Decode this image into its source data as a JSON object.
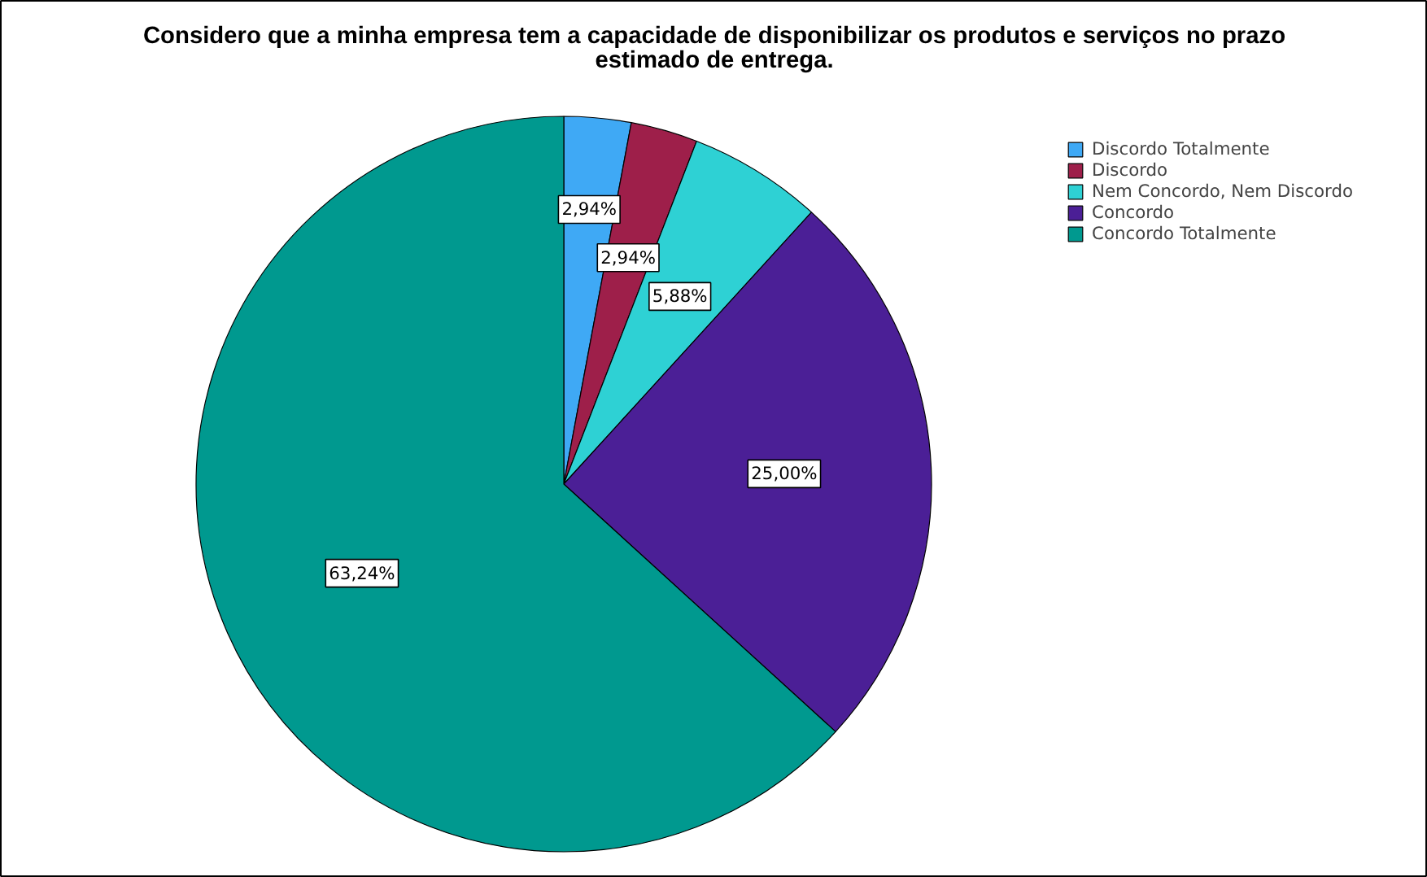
{
  "chart_data": {
    "type": "pie",
    "title": "Considero que a minha empresa tem a capacidade de disponibilizar os produtos e serviços no prazo estimado de entrega.",
    "categories": [
      "Discordo Totalmente",
      "Discordo",
      "Nem Concordo, Nem Discordo",
      "Concordo",
      "Concordo Totalmente"
    ],
    "values": [
      2.94,
      2.94,
      5.88,
      25.0,
      63.24
    ],
    "value_labels": [
      "2,94%",
      "2,94%",
      "5,88%",
      "25,00%",
      "63,24%"
    ],
    "colors": [
      "#3fa9f5",
      "#9e1f4a",
      "#2ed1d4",
      "#4b1f96",
      "#00998f"
    ],
    "legend": "top right"
  }
}
